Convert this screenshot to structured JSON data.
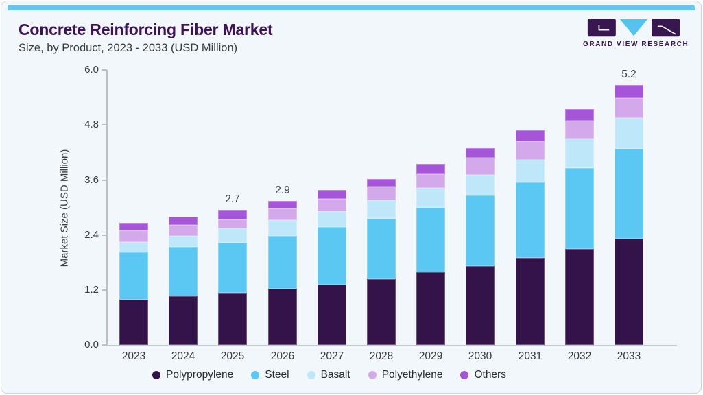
{
  "header": {
    "title": "Concrete Reinforcing Fiber Market",
    "subtitle": "Size, by Product, 2023 - 2033 (USD Million)"
  },
  "logo": {
    "text": "GRAND VIEW RESEARCH",
    "dark_color": "#381650",
    "blue_color": "#56c2ee"
  },
  "theme": {
    "accent_bar_color": "#64c5ef",
    "card_background": "#f2f7fb",
    "title_color": "#3e1257",
    "text_color": "#3a3a3a",
    "axis_color": "#b9c1c9"
  },
  "chart_data": {
    "type": "bar",
    "stacked": true,
    "title": "",
    "xlabel": "",
    "ylabel": "Market Size (USD Million)",
    "ylim": [
      0.0,
      6.0
    ],
    "yticks": [
      0.0,
      1.2,
      2.4,
      3.6,
      4.8,
      6.0
    ],
    "grid": false,
    "legend_position": "bottom",
    "categories": [
      "2023",
      "2024",
      "2025",
      "2026",
      "2027",
      "2028",
      "2029",
      "2030",
      "2031",
      "2032",
      "2033"
    ],
    "series": [
      {
        "name": "Polypropylene",
        "color": "#331349",
        "values": [
          0.91,
          0.98,
          1.04,
          1.13,
          1.21,
          1.32,
          1.45,
          1.58,
          1.75,
          1.92,
          2.13
        ]
      },
      {
        "name": "Steel",
        "color": "#5bc7f3",
        "values": [
          0.95,
          0.98,
          1.0,
          1.06,
          1.15,
          1.21,
          1.3,
          1.42,
          1.51,
          1.63,
          1.8
        ]
      },
      {
        "name": "Basalt",
        "color": "#bee7fa",
        "values": [
          0.2,
          0.22,
          0.3,
          0.31,
          0.32,
          0.37,
          0.39,
          0.41,
          0.45,
          0.58,
          0.61
        ]
      },
      {
        "name": "Polyethylene",
        "color": "#d3a9eb",
        "values": [
          0.23,
          0.22,
          0.17,
          0.24,
          0.24,
          0.27,
          0.28,
          0.34,
          0.37,
          0.36,
          0.4
        ]
      },
      {
        "name": "Others",
        "color": "#a455d8",
        "values": [
          0.15,
          0.17,
          0.19,
          0.15,
          0.18,
          0.16,
          0.21,
          0.19,
          0.22,
          0.23,
          0.26
        ]
      }
    ],
    "bar_total_labels": [
      "",
      "",
      "2.7",
      "2.9",
      "",
      "",
      "",
      "",
      "",
      "",
      "5.2"
    ]
  }
}
